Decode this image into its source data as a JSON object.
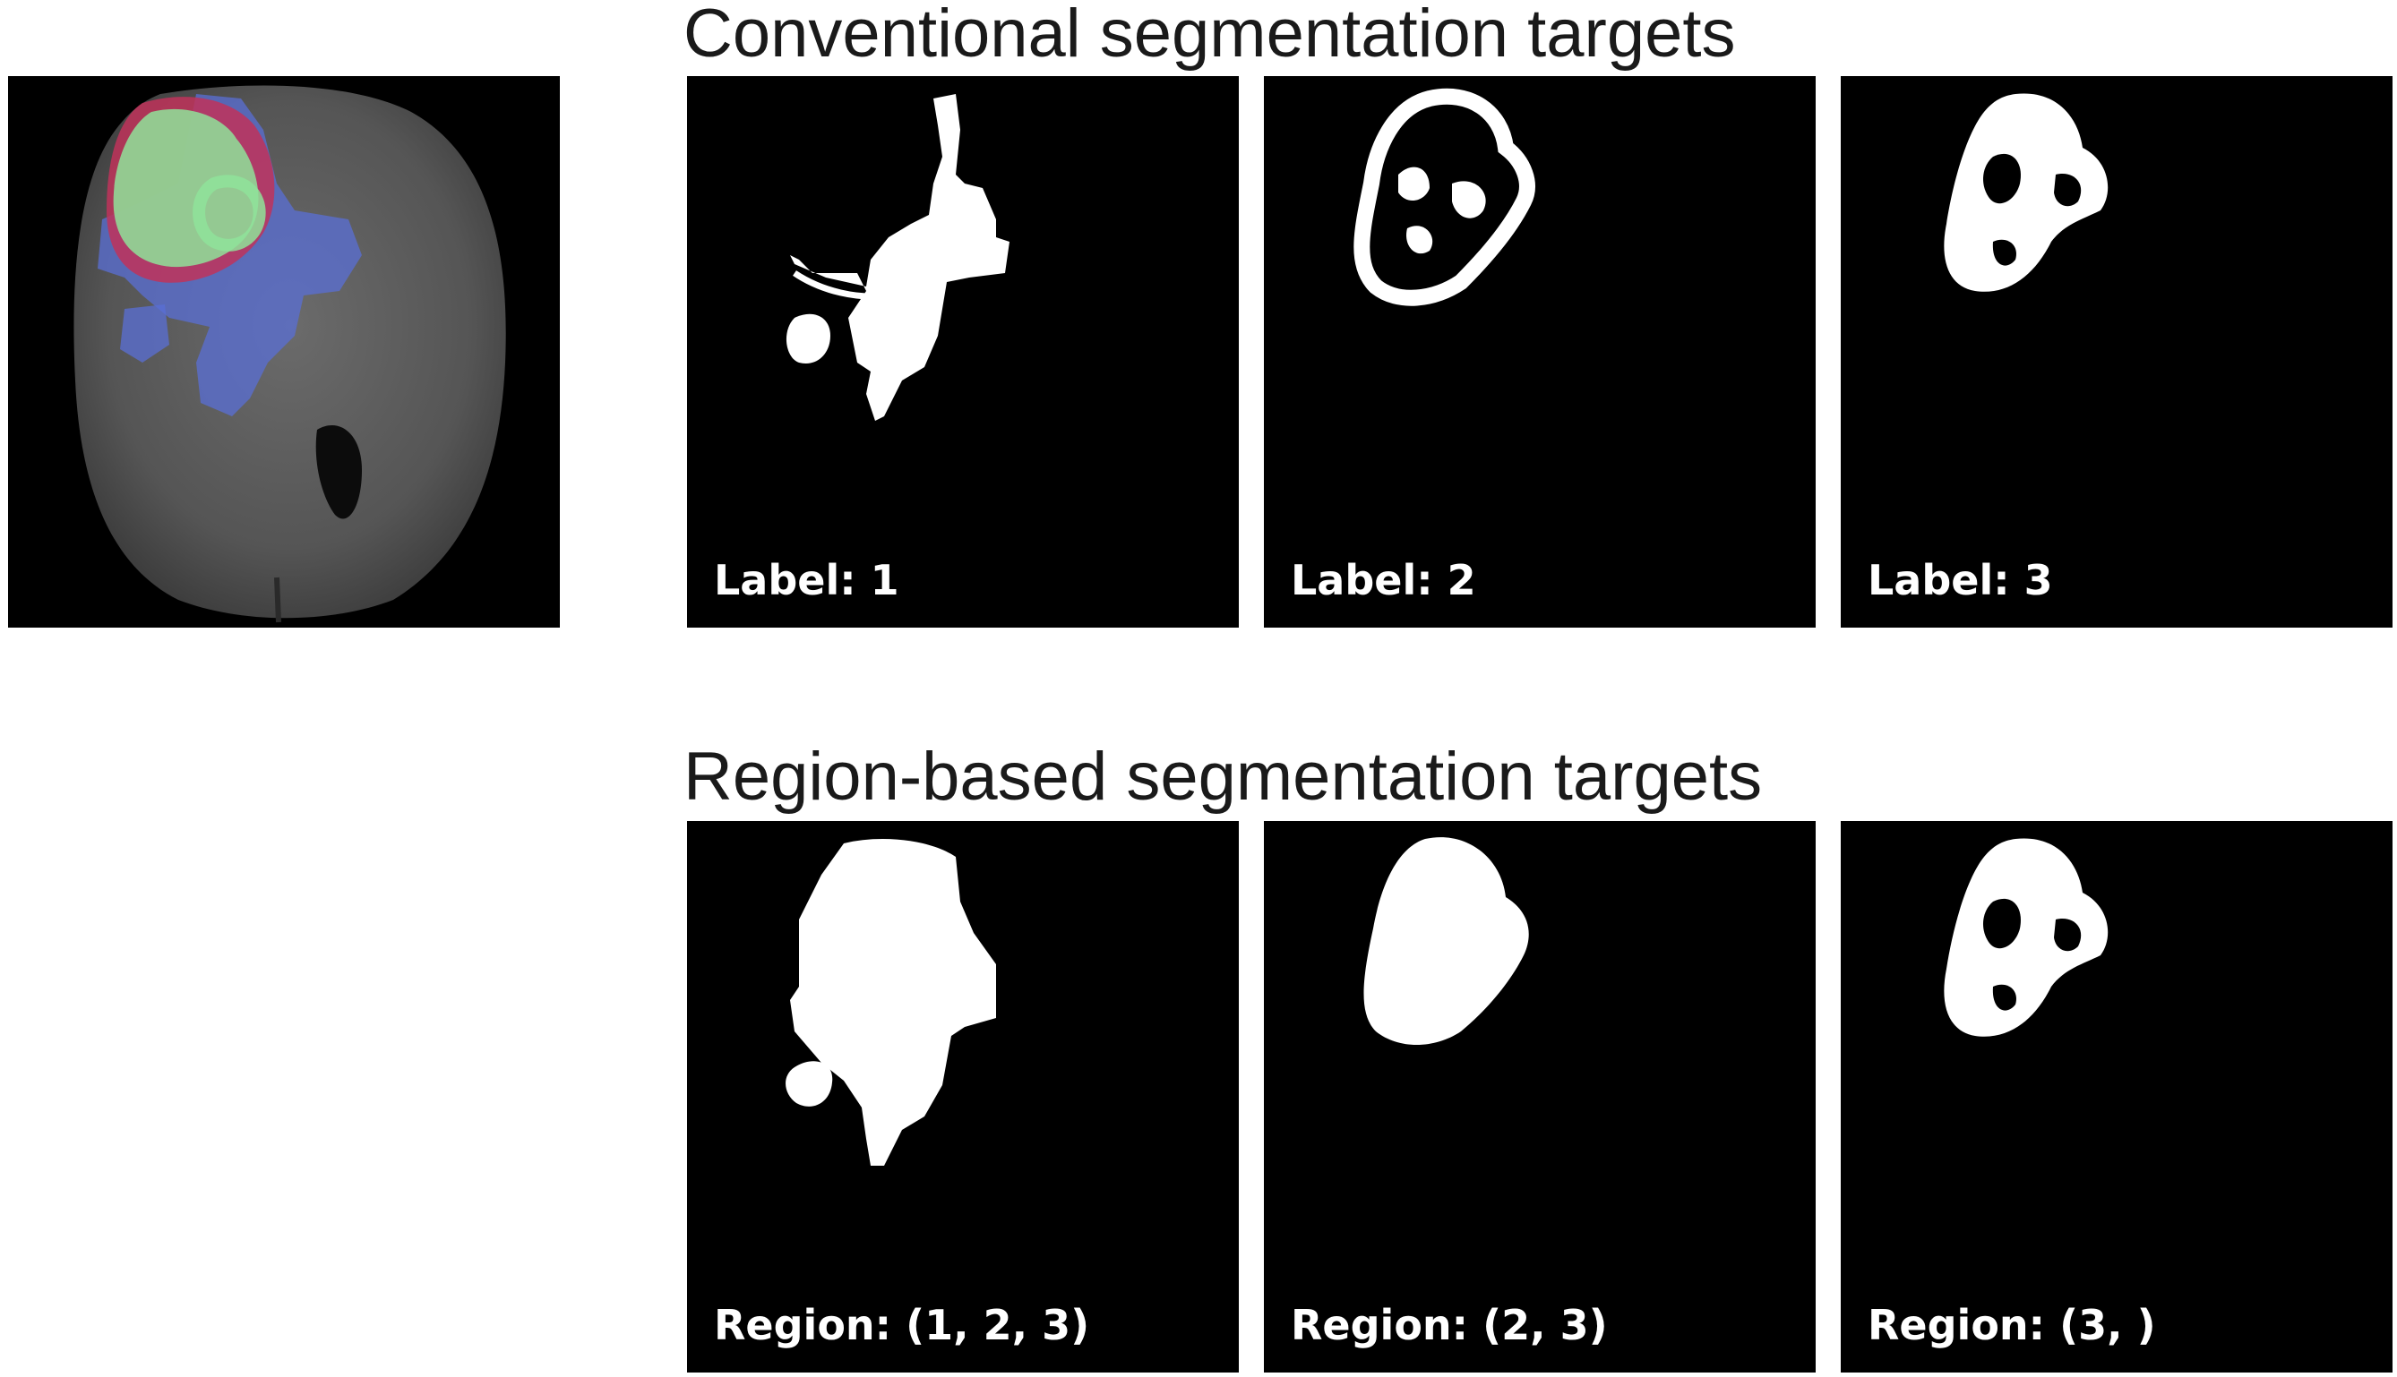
{
  "conventional": {
    "title": "Conventional segmentation targets",
    "panels": [
      {
        "caption": "Label: 1"
      },
      {
        "caption": "Label: 2"
      },
      {
        "caption": "Label: 3"
      }
    ]
  },
  "region_based": {
    "title": "Region-based segmentation targets",
    "panels": [
      {
        "caption": "Region: (1, 2, 3)"
      },
      {
        "caption": "Region: (2, 3)"
      },
      {
        "caption": "Region: (3, )"
      }
    ]
  },
  "overlay_colors": {
    "label_1": "#5a6fd6",
    "label_2": "#c0325a",
    "label_3": "#8fe39a"
  }
}
